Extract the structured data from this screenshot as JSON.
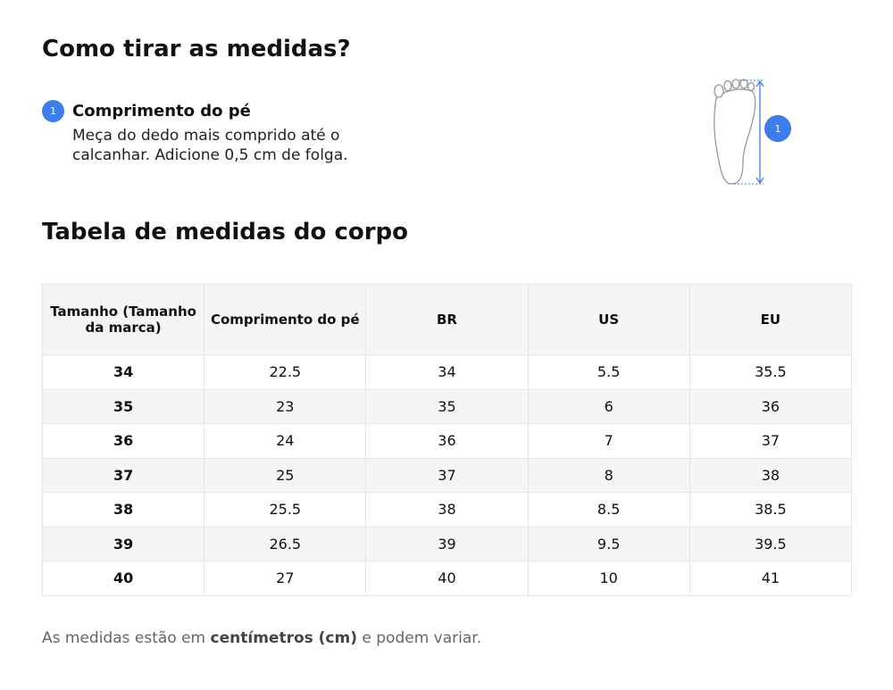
{
  "title": "Como tirar as medidas?",
  "steps": [
    {
      "number": "1",
      "title": "Comprimento do pé",
      "text": "Meça do dedo mais comprido até o calcanhar. Adicione 0,5 cm de folga."
    }
  ],
  "figure": {
    "badge": "1"
  },
  "table": {
    "title": "Tabela de medidas do corpo",
    "header": [
      "Tamanho (Tamanho da marca)",
      "Comprimento do pé",
      "BR",
      "US",
      "EU"
    ],
    "rows": [
      [
        "34",
        "22.5",
        "34",
        "5.5",
        "35.5"
      ],
      [
        "35",
        "23",
        "35",
        "6",
        "36"
      ],
      [
        "36",
        "24",
        "36",
        "7",
        "37"
      ],
      [
        "37",
        "25",
        "37",
        "8",
        "38"
      ],
      [
        "38",
        "25.5",
        "38",
        "8.5",
        "38.5"
      ],
      [
        "39",
        "26.5",
        "39",
        "9.5",
        "39.5"
      ],
      [
        "40",
        "27",
        "40",
        "10",
        "41"
      ]
    ]
  },
  "footnote": {
    "before": "As medidas estão em",
    "bold": "centímetros (cm)",
    "after": "e podem variar."
  }
}
